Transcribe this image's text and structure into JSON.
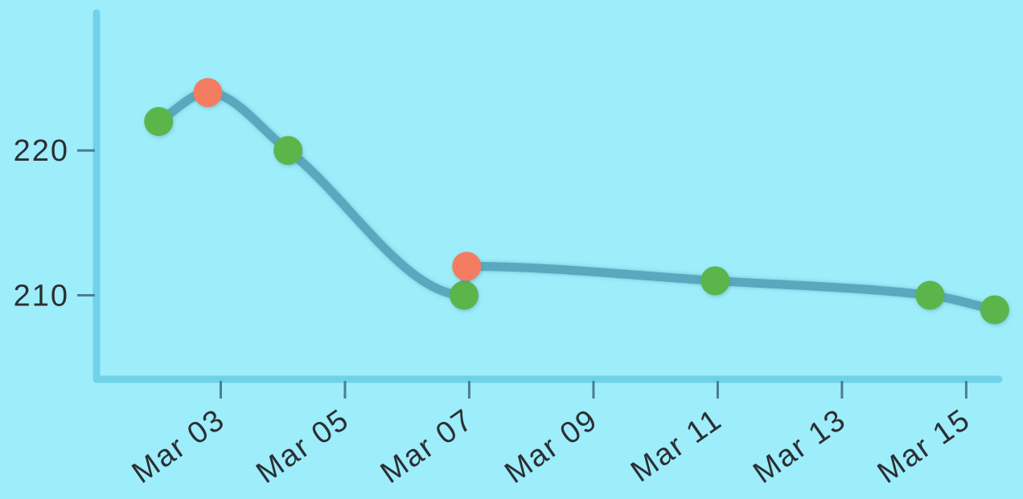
{
  "chart_data": {
    "type": "line",
    "title": "",
    "xlabel": "",
    "ylabel": "",
    "x_range": [
      "2024-03-01",
      "2024-03-15 12:00"
    ],
    "ylim": [
      204.2,
      229.5
    ],
    "grid": false,
    "legend": "none",
    "y_ticks": [
      {
        "value": 210,
        "label": "210"
      },
      {
        "value": 220,
        "label": "220"
      }
    ],
    "x_ticks": [
      {
        "date": "2024-03-03",
        "label": "Mar 03"
      },
      {
        "date": "2024-03-05",
        "label": "Mar 05"
      },
      {
        "date": "2024-03-07",
        "label": "Mar 07"
      },
      {
        "date": "2024-03-09",
        "label": "Mar 09"
      },
      {
        "date": "2024-03-11",
        "label": "Mar 11"
      },
      {
        "date": "2024-03-13",
        "label": "Mar 13"
      },
      {
        "date": "2024-03-15",
        "label": "Mar 15"
      }
    ],
    "series": [
      {
        "points": [
          {
            "x": "2024-03-02 00:00",
            "y": 222.0,
            "status": "up"
          },
          {
            "x": "2024-03-02 19:00",
            "y": 224.0,
            "status": "down"
          },
          {
            "x": "2024-03-04 02:00",
            "y": 220.0,
            "status": "up"
          },
          {
            "x": "2024-03-06 22:00",
            "y": 210.0,
            "status": "up"
          },
          {
            "x": "2024-03-06 23:00",
            "y": 212.0,
            "status": "down"
          },
          {
            "x": "2024-03-10 23:00",
            "y": 211.0,
            "status": "up"
          },
          {
            "x": "2024-03-14 10:00",
            "y": 210.0,
            "status": "up"
          },
          {
            "x": "2024-03-15 11:00",
            "y": 209.0,
            "status": "up"
          }
        ]
      }
    ],
    "colors": {
      "background": "#9dedfb",
      "axis": "#6fd3e8",
      "line": "#5aa8be",
      "point_up": "#5cb54a",
      "point_down": "#f47c60",
      "tick": "#4a7f8e",
      "text": "#2b2f33"
    }
  }
}
